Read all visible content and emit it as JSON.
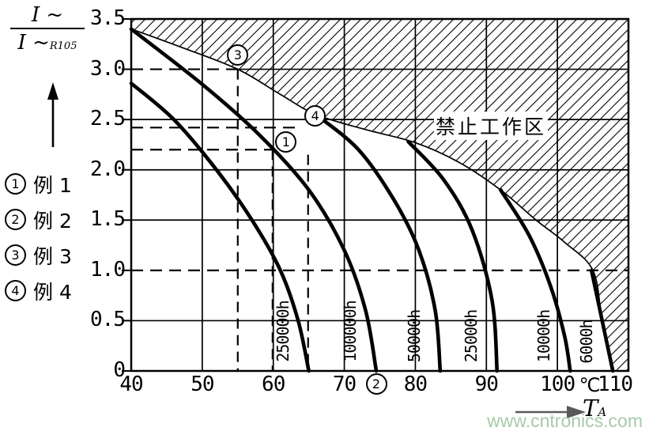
{
  "y_axis_label": {
    "numerator": "I ~",
    "denominator": "I ~",
    "denominator_sub": "R105"
  },
  "y_axis": {
    "tick_labels": [
      "3.5",
      "3.0",
      "2.5",
      "2.0",
      "1.5",
      "1.0",
      "0.5",
      "0"
    ]
  },
  "x_axis": {
    "tick_labels": [
      "40",
      "50",
      "60",
      "70",
      "80",
      "90",
      "100",
      "110"
    ],
    "unit": "℃",
    "arrow_label": "T",
    "arrow_label_sub": "A"
  },
  "legend": {
    "items": [
      {
        "symbol": "1",
        "label": "例 1"
      },
      {
        "symbol": "2",
        "label": "例 2"
      },
      {
        "symbol": "3",
        "label": "例 3"
      },
      {
        "symbol": "4",
        "label": "例 4"
      }
    ]
  },
  "forbidden_label": "禁止工作区",
  "watermark": "www.cntronics.com",
  "colors": {
    "line": "#000000",
    "watermark": "#a6cba6",
    "arrow": "#5a5a5a"
  },
  "chart_data": {
    "type": "line",
    "title": "",
    "xlabel": "T (℃)",
    "ylabel": "I~ / I~R105",
    "xlim": [
      40,
      110
    ],
    "ylim": [
      0,
      3.5
    ],
    "x_ticks": [
      40,
      50,
      60,
      70,
      80,
      90,
      100,
      110
    ],
    "y_ticks": [
      0,
      0.5,
      1.0,
      1.5,
      2.0,
      2.5,
      3.0,
      3.5
    ],
    "grid": {
      "v_lines_T": [
        50,
        60,
        70,
        80,
        90,
        100
      ],
      "h_lines": [
        {
          "r": 3.0,
          "T0": 55,
          "T1": 110
        },
        {
          "r": 2.5,
          "T0": 40,
          "T1": 110
        },
        {
          "r": 2.0,
          "T0": 40,
          "T1": 110
        },
        {
          "r": 1.5,
          "T0": 40,
          "T1": 110
        },
        {
          "r": 0.5,
          "T0": 40,
          "T1": 110
        }
      ]
    },
    "series": [
      {
        "name": "250000h",
        "points": [
          [
            40,
            2.86
          ],
          [
            46,
            2.5
          ],
          [
            52,
            2.0
          ],
          [
            57,
            1.5
          ],
          [
            61,
            1.0
          ],
          [
            63.5,
            0.5
          ],
          [
            65,
            0
          ]
        ]
      },
      {
        "name": "100000h",
        "points": [
          [
            40,
            3.4
          ],
          [
            50,
            2.85
          ],
          [
            58,
            2.35
          ],
          [
            65,
            1.8
          ],
          [
            70,
            1.2
          ],
          [
            73,
            0.6
          ],
          [
            74.5,
            0
          ]
        ]
      },
      {
        "name": "50000h",
        "points": [
          [
            66,
            2.55
          ],
          [
            72,
            2.2
          ],
          [
            77,
            1.7
          ],
          [
            80.5,
            1.2
          ],
          [
            82.8,
            0.6
          ],
          [
            83.5,
            0
          ]
        ]
      },
      {
        "name": "25000h",
        "points": [
          [
            79,
            2.28
          ],
          [
            84,
            1.9
          ],
          [
            88,
            1.4
          ],
          [
            90.8,
            0.7
          ],
          [
            91.5,
            0
          ]
        ]
      },
      {
        "name": "10000h",
        "points": [
          [
            92,
            1.8
          ],
          [
            96,
            1.35
          ],
          [
            99,
            0.85
          ],
          [
            101,
            0.35
          ],
          [
            101.8,
            0
          ]
        ]
      },
      {
        "name": "6000h",
        "points": [
          [
            104.8,
            1.0
          ],
          [
            106.3,
            0.5
          ],
          [
            107.8,
            0
          ]
        ]
      }
    ],
    "boundary": {
      "label": "禁止工作区",
      "points": [
        [
          40,
          3.4
        ],
        [
          47,
          3.22
        ],
        [
          55,
          3.0
        ],
        [
          61,
          2.75
        ],
        [
          66,
          2.55
        ],
        [
          73,
          2.4
        ],
        [
          80,
          2.27
        ],
        [
          86,
          2.08
        ],
        [
          92,
          1.8
        ],
        [
          97,
          1.5
        ],
        [
          101,
          1.28
        ],
        [
          105,
          1.0
        ],
        [
          106.3,
          0.5
        ],
        [
          107.8,
          0
        ]
      ]
    },
    "dashed_guides": {
      "horizontal": [
        {
          "r": 3.0,
          "T0": 40,
          "T1": 55
        },
        {
          "r": 2.42,
          "T0": 40,
          "T1": 63.2
        },
        {
          "r": 2.2,
          "T0": 40,
          "T1": 59.9
        },
        {
          "r": 1.0,
          "T0": 40,
          "T1": 110
        }
      ],
      "vertical": [
        {
          "T": 55,
          "r0": 3.0,
          "r1": 0
        },
        {
          "T": 59.9,
          "r0": 2.2,
          "r1": 0
        },
        {
          "T": 64.9,
          "r0": 2.15,
          "r1": 0
        }
      ]
    },
    "markers": [
      {
        "symbol": "1",
        "T": 61.8,
        "ratio": 2.28
      },
      {
        "symbol": "2",
        "T": 74.5,
        "ratio": -0.13
      },
      {
        "symbol": "3",
        "T": 55.0,
        "ratio": 3.14
      },
      {
        "symbol": "4",
        "T": 65.9,
        "ratio": 2.54
      }
    ]
  }
}
